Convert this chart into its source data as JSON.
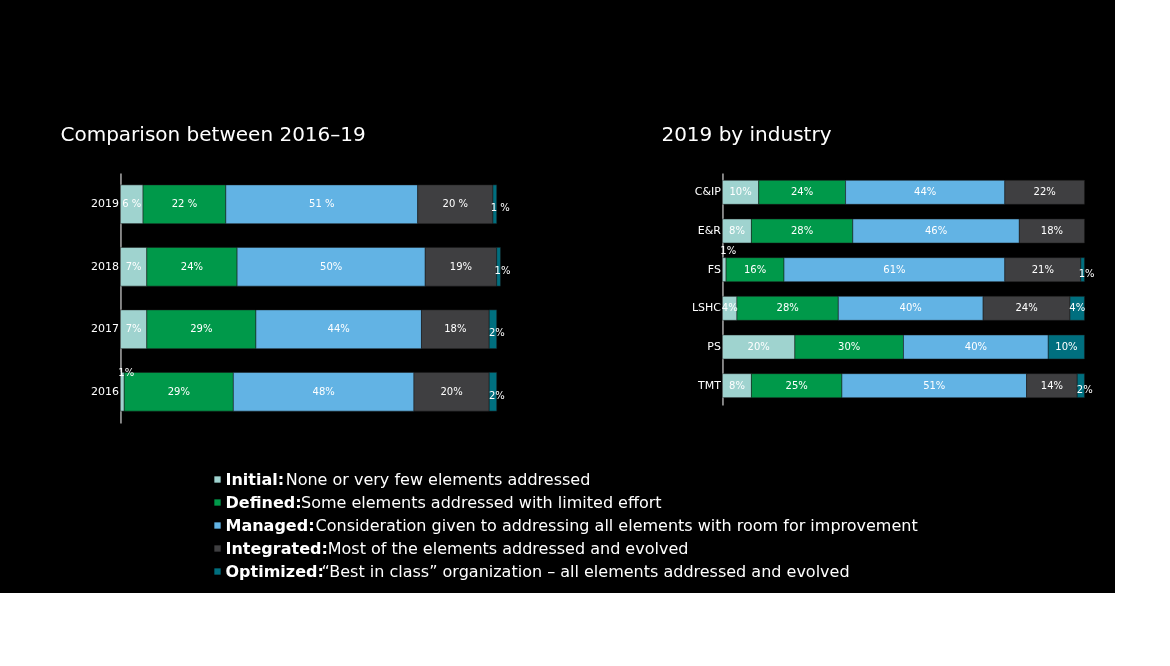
{
  "chart_data": [
    {
      "type": "bar",
      "orientation": "horizontal",
      "stacked": true,
      "title": "Comparison between 2016–19",
      "categories": [
        "2019",
        "2018",
        "2017",
        "2016"
      ],
      "tick_labels": "y",
      "legend": "bottom",
      "grid": false,
      "series": [
        {
          "name": "Initial:",
          "color": "#9fd3cf",
          "values": [
            6,
            7,
            7,
            1
          ],
          "value_labels": [
            "6 %",
            "7%",
            "7%",
            "1%"
          ]
        },
        {
          "name": "Defined:",
          "color": "#00994a",
          "values": [
            22,
            24,
            29,
            29
          ],
          "value_labels": [
            "22 %",
            "24%",
            "29%",
            "29%"
          ]
        },
        {
          "name": "Managed:",
          "color": "#62b3e4",
          "values": [
            51,
            50,
            44,
            48
          ],
          "value_labels": [
            "51 %",
            "50%",
            "44%",
            "48%"
          ]
        },
        {
          "name": "Integrated:",
          "color": "#3f3f41",
          "values": [
            20,
            19,
            18,
            20
          ],
          "value_labels": [
            "20 %",
            "19%",
            "18%",
            "20%"
          ]
        },
        {
          "name": "Optimized:",
          "color": "#006f7f",
          "values": [
            1,
            1,
            2,
            2
          ],
          "value_labels": [
            "1 %",
            "1%",
            "2%",
            "2%"
          ]
        }
      ],
      "annotations": [
        "None or very few elements addressed",
        "Some elements addressed with limited effort",
        "Consideration given to addressing all elements with room for improvement",
        "Most of the elements addressed and evolved",
        "“Best in class” organization – all elements addressed and evolved"
      ]
    },
    {
      "type": "bar",
      "orientation": "horizontal",
      "stacked": true,
      "title": "2019 by industry",
      "categories": [
        "C&IP",
        "E&R",
        "FS",
        "LSHC",
        "PS",
        "TMT"
      ],
      "tick_labels": "y",
      "grid": false,
      "series": [
        {
          "color": "#9fd3cf",
          "values": [
            10,
            8,
            1,
            4,
            20,
            8
          ],
          "value_labels": [
            "10%",
            "8%",
            "1%",
            "4%",
            "20%",
            "8%"
          ]
        },
        {
          "color": "#00994a",
          "values": [
            24,
            28,
            16,
            28,
            30,
            25
          ],
          "value_labels": [
            "24%",
            "28%",
            "16%",
            "28%",
            "30%",
            "25%"
          ]
        },
        {
          "color": "#62b3e4",
          "values": [
            44,
            46,
            61,
            40,
            40,
            51
          ],
          "value_labels": [
            "44%",
            "46%",
            "61%",
            "40%",
            "40%",
            "51%"
          ]
        },
        {
          "color": "#3f3f41",
          "values": [
            22,
            18,
            21,
            24,
            null,
            14
          ],
          "value_labels": [
            "22%",
            "18%",
            "21%",
            "24%",
            null,
            "14%"
          ]
        },
        {
          "color": "#006f7f",
          "values": [
            null,
            null,
            1,
            4,
            10,
            2
          ],
          "value_labels": [
            null,
            null,
            "1%",
            "4%",
            "10%",
            "2%"
          ]
        }
      ]
    }
  ]
}
